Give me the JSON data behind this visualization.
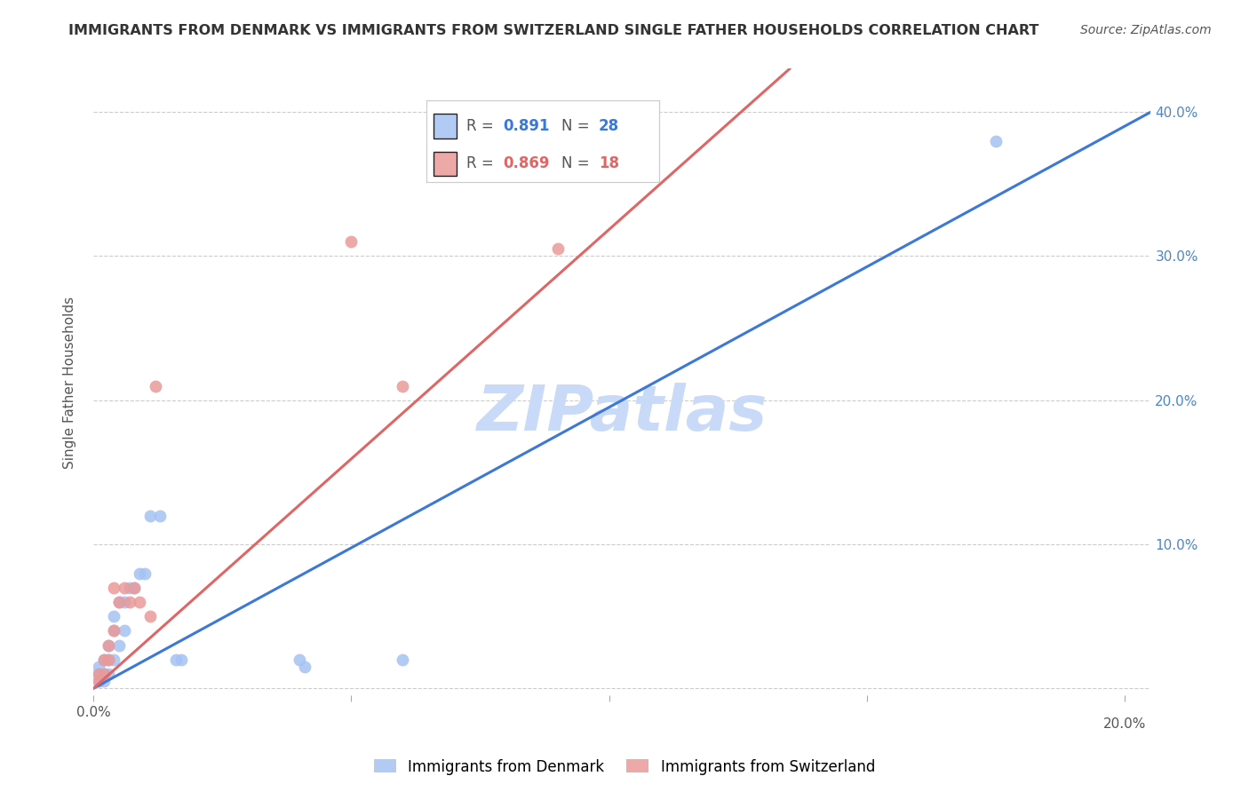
{
  "title": "IMMIGRANTS FROM DENMARK VS IMMIGRANTS FROM SWITZERLAND SINGLE FATHER HOUSEHOLDS CORRELATION CHART",
  "source": "Source: ZipAtlas.com",
  "ylabel": "Single Father Households",
  "xlim": [
    0.0,
    0.205
  ],
  "ylim": [
    -0.005,
    0.43
  ],
  "denmark_color": "#a4c2f4",
  "switzerland_color": "#ea9999",
  "denmark_line_color": "#3c78d8",
  "switzerland_line_color": "#e06666",
  "denmark_R": 0.891,
  "denmark_N": 28,
  "switzerland_R": 0.869,
  "switzerland_N": 18,
  "watermark": "ZIPatlas",
  "background_color": "#ffffff",
  "grid_color": "#cccccc",
  "right_axis_color": "#4a86c8",
  "denmark_scatter_x": [
    0.001,
    0.001,
    0.001,
    0.002,
    0.002,
    0.002,
    0.003,
    0.003,
    0.003,
    0.004,
    0.004,
    0.004,
    0.005,
    0.005,
    0.006,
    0.006,
    0.007,
    0.008,
    0.009,
    0.01,
    0.011,
    0.013,
    0.016,
    0.017,
    0.04,
    0.041,
    0.06,
    0.175
  ],
  "denmark_scatter_y": [
    0.005,
    0.01,
    0.015,
    0.005,
    0.01,
    0.02,
    0.01,
    0.02,
    0.03,
    0.02,
    0.04,
    0.05,
    0.03,
    0.06,
    0.04,
    0.06,
    0.07,
    0.07,
    0.08,
    0.08,
    0.12,
    0.12,
    0.02,
    0.02,
    0.02,
    0.015,
    0.02,
    0.38
  ],
  "switzerland_scatter_x": [
    0.001,
    0.001,
    0.002,
    0.002,
    0.003,
    0.003,
    0.004,
    0.004,
    0.005,
    0.006,
    0.007,
    0.008,
    0.009,
    0.011,
    0.012,
    0.05,
    0.06,
    0.09
  ],
  "switzerland_scatter_y": [
    0.005,
    0.01,
    0.01,
    0.02,
    0.02,
    0.03,
    0.04,
    0.07,
    0.06,
    0.07,
    0.06,
    0.07,
    0.06,
    0.05,
    0.21,
    0.31,
    0.21,
    0.305
  ],
  "denmark_line_x": [
    0.0,
    0.205
  ],
  "denmark_line_y": [
    0.0,
    0.4
  ],
  "switzerland_line_x": [
    0.0,
    0.135
  ],
  "switzerland_line_y": [
    0.0,
    0.43
  ],
  "title_fontsize": 11.5,
  "source_fontsize": 10,
  "legend_fontsize": 13,
  "axis_label_fontsize": 11,
  "tick_fontsize": 11,
  "watermark_fontsize": 52,
  "watermark_color": "#c9daf8",
  "scatter_size": 100
}
